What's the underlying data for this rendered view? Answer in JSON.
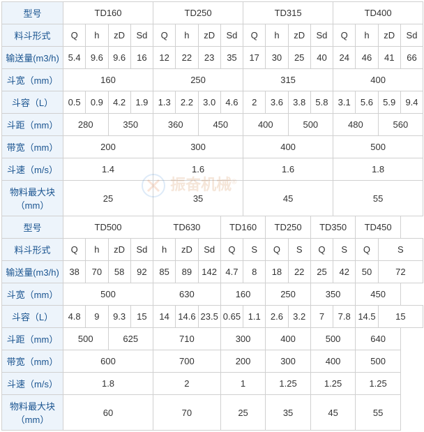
{
  "labels": {
    "model": "型号",
    "bucket_form": "料斗形式",
    "capacity": "输送量(m3/h)",
    "bucket_width": "斗宽（mm）",
    "bucket_vol": "斗容（L）",
    "bucket_pitch": "斗距（mm）",
    "belt_width": "带宽（mm）",
    "bucket_speed": "斗速（m/s）",
    "max_lump": "物料最大块（mm）"
  },
  "colors": {
    "header_bg": "#edf4fb",
    "header_fg": "#1a5490",
    "border": "#d0d0d0",
    "bg": "#fff"
  },
  "top": {
    "models": [
      "TD160",
      "TD250",
      "TD315",
      "TD400"
    ],
    "forms": [
      "Q",
      "h",
      "zD",
      "Sd",
      "Q",
      "h",
      "zD",
      "Sd",
      "Q",
      "h",
      "zD",
      "Sd",
      "Q",
      "h",
      "zD",
      "Sd"
    ],
    "capacity": [
      "5.4",
      "9.6",
      "9.6",
      "16",
      "12",
      "22",
      "23",
      "35",
      "17",
      "30",
      "25",
      "40",
      "24",
      "46",
      "41",
      "66"
    ],
    "bwidth": [
      "160",
      "250",
      "315",
      "400"
    ],
    "bvol": [
      "0.5",
      "0.9",
      "4.2",
      "1.9",
      "1.3",
      "2.2",
      "3.0",
      "4.6",
      "2",
      "3.6",
      "3.8",
      "5.8",
      "3.1",
      "5.6",
      "5.9",
      "9.4"
    ],
    "pitch": [
      "280",
      "350",
      "360",
      "450",
      "400",
      "500",
      "480",
      "560"
    ],
    "belt": [
      "200",
      "300",
      "400",
      "500"
    ],
    "speed": [
      "1.4",
      "1.6",
      "1.6",
      "1.8"
    ],
    "lump": [
      "25",
      "35",
      "45",
      "55"
    ]
  },
  "bot": {
    "models": [
      "TD500",
      "TD630",
      "TD160",
      "TD250",
      "TD350",
      "TD450"
    ],
    "model_spans": [
      4,
      3,
      2,
      2,
      2,
      2
    ],
    "forms": [
      "Q",
      "h",
      "zD",
      "Sd",
      "h",
      "zD",
      "Sd",
      "Q",
      "S",
      "Q",
      "S",
      "Q",
      "S",
      "Q",
      "S"
    ],
    "form_spans": [
      1,
      1,
      1,
      1,
      1,
      1,
      1,
      1,
      1,
      1,
      1,
      1,
      1,
      1,
      2
    ],
    "capacity": [
      "38",
      "70",
      "58",
      "92",
      "85",
      "89",
      "142",
      "4.7",
      "8",
      "18",
      "22",
      "25",
      "42",
      "50",
      "72"
    ],
    "capacity_spans": [
      1,
      1,
      1,
      1,
      1,
      1,
      1,
      1,
      1,
      1,
      1,
      1,
      1,
      1,
      2
    ],
    "bwidth": [
      "500",
      "630",
      "160",
      "250",
      "350",
      "450"
    ],
    "bwidth_spans": [
      4,
      3,
      2,
      2,
      2,
      2
    ],
    "bvol": [
      "4.8",
      "9",
      "9.3",
      "15",
      "14",
      "14.6",
      "23.5",
      "0.65",
      "1.1",
      "2.6",
      "3.2",
      "7",
      "7.8",
      "14.5",
      "15"
    ],
    "bvol_spans": [
      1,
      1,
      1,
      1,
      1,
      1,
      1,
      1,
      1,
      1,
      1,
      1,
      1,
      1,
      2
    ],
    "pitch": [
      "500",
      "625",
      "710",
      "300",
      "400",
      "500",
      "640"
    ],
    "pitch_spans": [
      2,
      2,
      3,
      2,
      2,
      2,
      2
    ],
    "belt": [
      "600",
      "700",
      "200",
      "300",
      "400",
      "500"
    ],
    "belt_spans": [
      4,
      3,
      2,
      2,
      2,
      2
    ],
    "speed": [
      "1.8",
      "2",
      "1",
      "1.25",
      "1.25",
      "1.25"
    ],
    "speed_spans": [
      4,
      3,
      2,
      2,
      2,
      2
    ],
    "lump": [
      "60",
      "70",
      "25",
      "35",
      "45",
      "55"
    ],
    "lump_spans": [
      4,
      3,
      2,
      2,
      2,
      2
    ]
  },
  "watermark": "振奋机械"
}
